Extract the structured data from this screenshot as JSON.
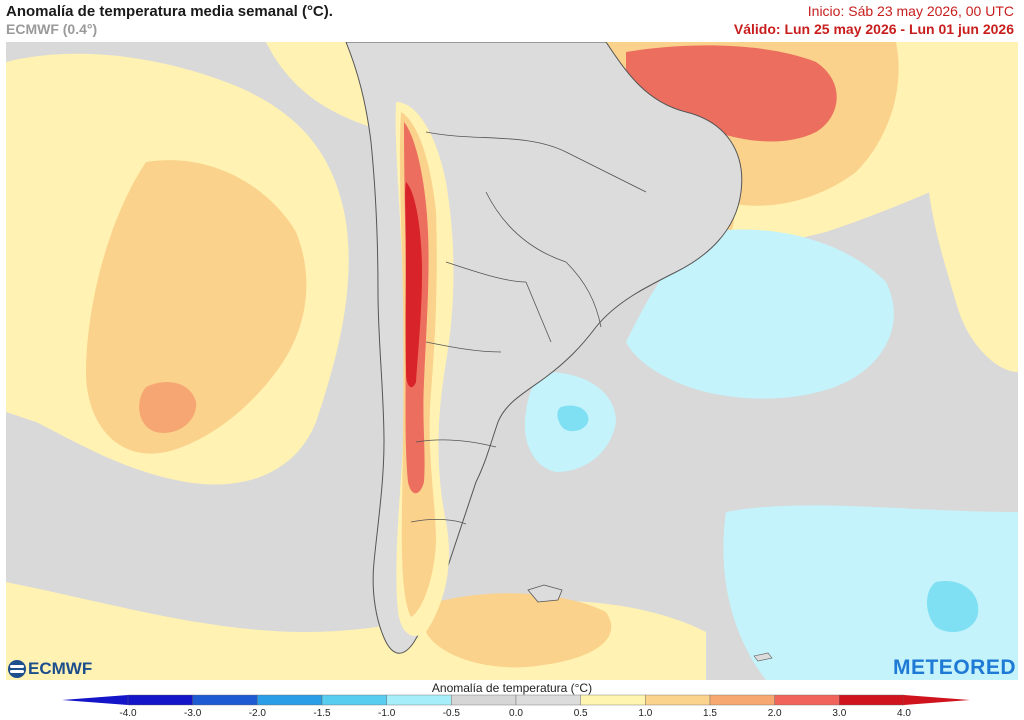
{
  "header": {
    "title": "Anomalía de temperatura media semanal (°C).",
    "model": "ECMWF (0.4°)",
    "init": "Inicio: Sáb 23 may 2026, 00 UTC",
    "valid": "Válido: Lun 25 may 2026 - Lun 01 jun 2026"
  },
  "branding": {
    "left_logo": "ECMWF",
    "right_logo": "METEORED"
  },
  "legend": {
    "title": "Anomalía de temperatura (°C)",
    "ticks": [
      "-4.0",
      "-3.0",
      "-2.0",
      "-1.5",
      "-1.0",
      "-0.5",
      "0.0",
      "0.5",
      "1.0",
      "1.5",
      "2.0",
      "3.0",
      "4.0"
    ],
    "colors": [
      "#1414c8",
      "#1e5ad2",
      "#2a9ee6",
      "#58cdf0",
      "#a6eefa",
      "#d6d6d6",
      "#dcdcdc",
      "#fff4b0",
      "#fbd38c",
      "#f6a870",
      "#f0645a",
      "#d0141e"
    ]
  },
  "map_colors": {
    "neutral": "#d9d9d9",
    "warm_light": "#fff2b2",
    "warm_medium": "#fad28c",
    "warm_strong": "#f5a673",
    "hot": "#ec6e5e",
    "very_hot": "#d9232a",
    "cool_light": "#c4f3fb",
    "cool_medium": "#7fe0f3",
    "borders": "#555555"
  }
}
